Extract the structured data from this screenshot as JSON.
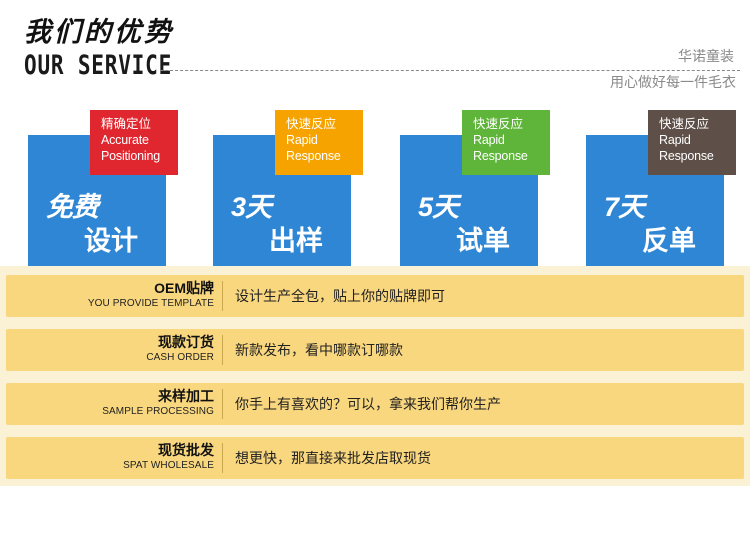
{
  "header": {
    "title_cn": "我们的优势",
    "title_en": "OUR SERVICE",
    "brand": "华诺童装",
    "slogan": "用心做好每一件毛衣"
  },
  "cards": [
    {
      "badge_cn": "精确定位",
      "badge_en1": "Accurate",
      "badge_en2": "Positioning",
      "badge_color": "#e0262f",
      "line1": "免费",
      "line2": "设计"
    },
    {
      "badge_cn": "快速反应",
      "badge_en1": "Rapid",
      "badge_en2": "Response",
      "badge_color": "#f6a300",
      "line1": "3天",
      "line2": "出样"
    },
    {
      "badge_cn": "快速反应",
      "badge_en1": "Rapid",
      "badge_en2": "Response",
      "badge_color": "#5eb53a",
      "line1": "5天",
      "line2": "试单"
    },
    {
      "badge_cn": "快速反应",
      "badge_en1": "Rapid",
      "badge_en2": "Response",
      "badge_color": "#5e5049",
      "line1": "7天",
      "line2": "反单"
    }
  ],
  "rows": [
    {
      "title_cn": "OEM贴牌",
      "title_en": "YOU PROVIDE TEMPLATE",
      "desc": "设计生产全包，贴上你的贴牌即可"
    },
    {
      "title_cn": "现款订货",
      "title_en": "CASH ORDER",
      "desc": "新款发布，看中哪款订哪款"
    },
    {
      "title_cn": "来样加工",
      "title_en": "SAMPLE PROCESSING",
      "desc": "你手上有喜欢的？可以，拿来我们帮你生产"
    },
    {
      "title_cn": "现货批发",
      "title_en": "SPAT WHOLESALE",
      "desc": "想更快，那直接来批发店取现货"
    }
  ],
  "colors": {
    "card_blue": "#2f86d4",
    "row_fill": "#f9d77e",
    "row_panel": "#fbf1d4"
  }
}
